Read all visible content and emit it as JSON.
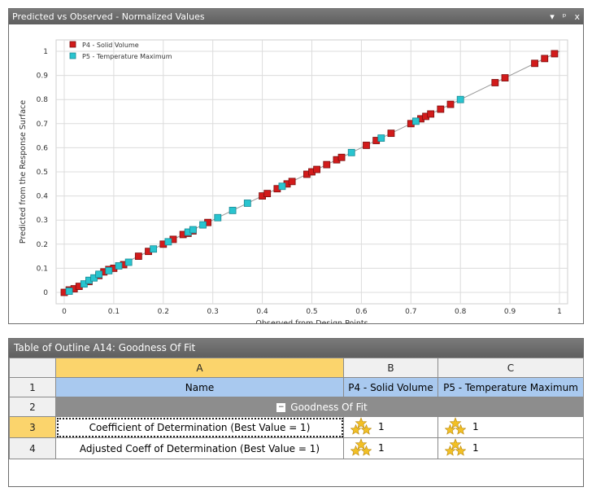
{
  "chart_panel": {
    "title": "Predicted vs Observed - Normalized Values",
    "controls": [
      "▾",
      "ᵖ",
      "x"
    ]
  },
  "chart_data": {
    "type": "scatter",
    "xlabel": "Observed from Design Points",
    "ylabel": "Predicted from the Response Surface",
    "xlim": [
      0,
      1
    ],
    "ylim": [
      0,
      1
    ],
    "x_ticks": [
      "0",
      "0.1",
      "0.2",
      "0.3",
      "0.4",
      "0.5",
      "0.6",
      "0.7",
      "0.8",
      "0.9",
      "1"
    ],
    "y_ticks": [
      "0",
      "0.1",
      "0.2",
      "0.3",
      "0.4",
      "0.5",
      "0.6",
      "0.7",
      "0.8",
      "0.9",
      "1"
    ],
    "grid": true,
    "legend_position": "top-left",
    "reference_line": [
      [
        0,
        0
      ],
      [
        1,
        1
      ]
    ],
    "series": [
      {
        "name": "P4 - Solid Volume",
        "color": "#d21b1b",
        "points": [
          [
            0,
            0
          ],
          [
            0.01,
            0.01
          ],
          [
            0.02,
            0.015
          ],
          [
            0.03,
            0.025
          ],
          [
            0.05,
            0.045
          ],
          [
            0.07,
            0.07
          ],
          [
            0.08,
            0.085
          ],
          [
            0.09,
            0.095
          ],
          [
            0.1,
            0.1
          ],
          [
            0.12,
            0.115
          ],
          [
            0.15,
            0.15
          ],
          [
            0.17,
            0.17
          ],
          [
            0.2,
            0.2
          ],
          [
            0.22,
            0.22
          ],
          [
            0.24,
            0.24
          ],
          [
            0.25,
            0.245
          ],
          [
            0.26,
            0.255
          ],
          [
            0.29,
            0.29
          ],
          [
            0.4,
            0.4
          ],
          [
            0.41,
            0.41
          ],
          [
            0.43,
            0.43
          ],
          [
            0.45,
            0.45
          ],
          [
            0.46,
            0.46
          ],
          [
            0.49,
            0.49
          ],
          [
            0.5,
            0.5
          ],
          [
            0.51,
            0.51
          ],
          [
            0.53,
            0.53
          ],
          [
            0.55,
            0.55
          ],
          [
            0.56,
            0.56
          ],
          [
            0.61,
            0.61
          ],
          [
            0.63,
            0.63
          ],
          [
            0.66,
            0.66
          ],
          [
            0.7,
            0.7
          ],
          [
            0.72,
            0.72
          ],
          [
            0.73,
            0.73
          ],
          [
            0.74,
            0.74
          ],
          [
            0.76,
            0.76
          ],
          [
            0.78,
            0.78
          ],
          [
            0.87,
            0.87
          ],
          [
            0.89,
            0.89
          ],
          [
            0.95,
            0.95
          ],
          [
            0.97,
            0.97
          ],
          [
            0.99,
            0.99
          ]
        ]
      },
      {
        "name": "P5 - Temperature Maximum",
        "color": "#29c4cf",
        "points": [
          [
            0.01,
            0.005
          ],
          [
            0.04,
            0.035
          ],
          [
            0.05,
            0.05
          ],
          [
            0.06,
            0.06
          ],
          [
            0.07,
            0.075
          ],
          [
            0.09,
            0.09
          ],
          [
            0.11,
            0.11
          ],
          [
            0.13,
            0.125
          ],
          [
            0.18,
            0.18
          ],
          [
            0.21,
            0.21
          ],
          [
            0.25,
            0.25
          ],
          [
            0.26,
            0.26
          ],
          [
            0.28,
            0.28
          ],
          [
            0.31,
            0.31
          ],
          [
            0.34,
            0.34
          ],
          [
            0.37,
            0.37
          ],
          [
            0.44,
            0.44
          ],
          [
            0.58,
            0.58
          ],
          [
            0.64,
            0.64
          ],
          [
            0.71,
            0.71
          ],
          [
            0.8,
            0.8
          ]
        ]
      }
    ]
  },
  "table_panel": {
    "title": "Table of Outline A14: Goodness Of Fit",
    "column_letters": [
      "A",
      "B",
      "C"
    ],
    "header_row": {
      "index": "1",
      "name": "Name",
      "b": "P4 - Solid Volume",
      "c": "P5 - Temperature Maximum"
    },
    "group_row": {
      "index": "2",
      "toggle": "−",
      "label": "Goodness Of Fit"
    },
    "rows": [
      {
        "index": "3",
        "name": "Coefficient of Determination (Best Value = 1)",
        "b": "1",
        "c": "1"
      },
      {
        "index": "4",
        "name": "Adjusted Coeff of Determination (Best Value = 1)",
        "b": "1",
        "c": "1"
      }
    ],
    "colors": {
      "selected_header": "#fbd46c",
      "name_header": "#a9c9ef",
      "group_bg": "#8d8d8d",
      "star": "#f2c025"
    }
  }
}
